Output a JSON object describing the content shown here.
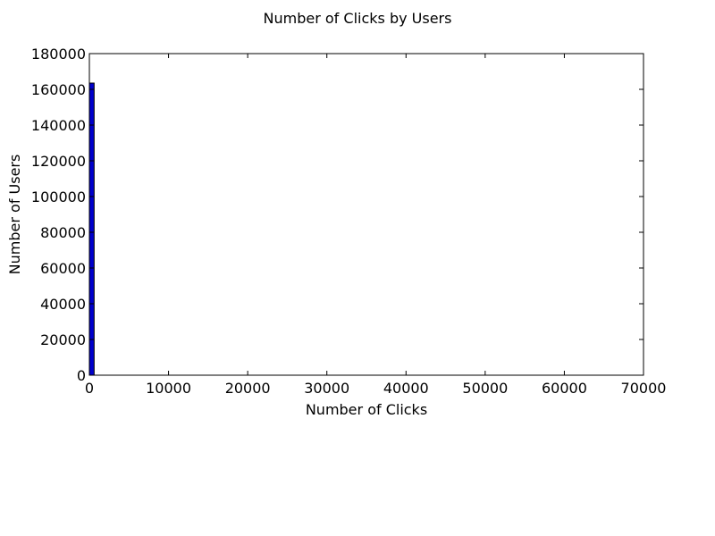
{
  "chart_data": {
    "type": "bar",
    "title": "Number of Clicks by Users",
    "xlabel": "Number of Clicks",
    "ylabel": "Number of Users",
    "xlim": [
      0,
      70000
    ],
    "ylim": [
      0,
      180000
    ],
    "xticks": [
      0,
      10000,
      20000,
      30000,
      40000,
      50000,
      60000,
      70000
    ],
    "yticks": [
      0,
      20000,
      40000,
      60000,
      80000,
      100000,
      120000,
      140000,
      160000,
      180000
    ],
    "bins": [
      {
        "x0": 0,
        "x1": 600,
        "value": 163500
      }
    ],
    "bar_color": "#0000cc",
    "grid": false,
    "legend": "none"
  }
}
